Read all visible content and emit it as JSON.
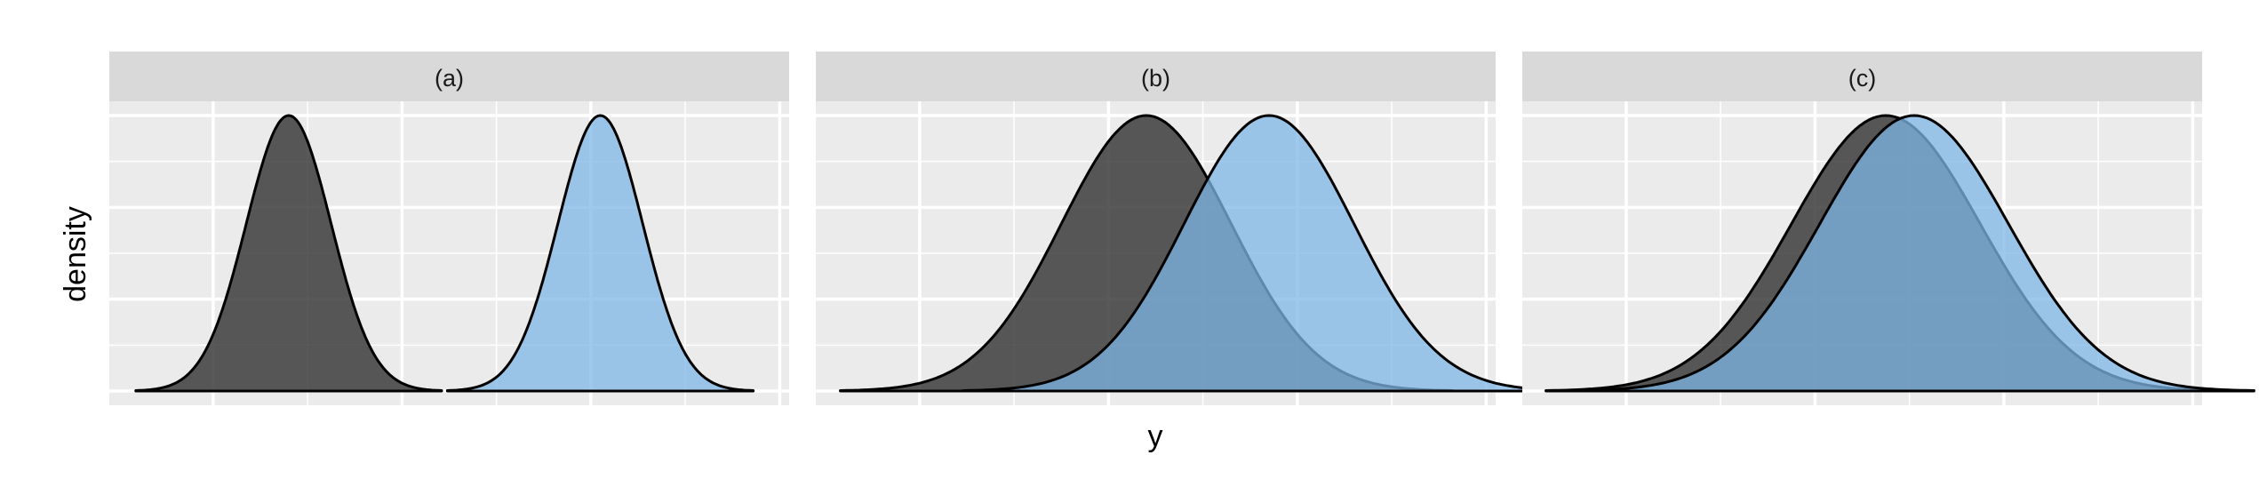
{
  "chart_data": {
    "type": "area",
    "xlabel": "y",
    "ylabel": "density",
    "x_tick_labels_shown": false,
    "y_tick_labels_shown": false,
    "grid": true,
    "legend": "none",
    "colors": {
      "series_dark": "#3c3c3c",
      "series_blue": "#7fb7e6",
      "overlap": "#5a93bd",
      "panel_background": "#ebebeb",
      "strip_background": "#d9d9d9",
      "gridline": "#ffffff",
      "outline": "#000000"
    },
    "panels": [
      {
        "label": "(a)",
        "series": [
          {
            "color": "dark",
            "mean": 1.3,
            "sd": 0.45
          },
          {
            "color": "blue",
            "mean": 4.6,
            "sd": 0.45
          }
        ]
      },
      {
        "label": "(b)",
        "series": [
          {
            "color": "dark",
            "mean": 2.9,
            "sd": 0.9
          },
          {
            "color": "blue",
            "mean": 4.2,
            "sd": 0.9
          }
        ]
      },
      {
        "label": "(c)",
        "series": [
          {
            "color": "dark",
            "mean": 3.25,
            "sd": 1.0
          },
          {
            "color": "blue",
            "mean": 3.55,
            "sd": 1.0
          }
        ]
      }
    ]
  }
}
